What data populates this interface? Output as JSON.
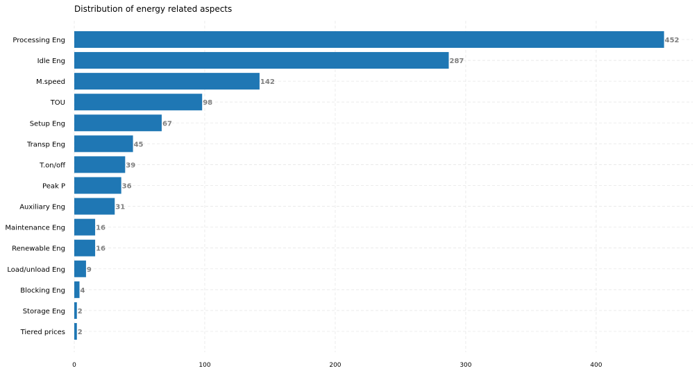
{
  "chart_data": {
    "type": "bar",
    "orientation": "horizontal",
    "title": "Distribution of energy related aspects",
    "xlabel": "",
    "ylabel": "",
    "categories": [
      "Processing Eng",
      "Idle Eng",
      "M.speed",
      "TOU",
      "Setup Eng",
      "Transp Eng",
      "T.on/off",
      "Peak P",
      "Auxiliary Eng",
      "Maintenance Eng",
      "Renewable Eng",
      "Load/unload Eng",
      "Blocking Eng",
      "Storage Eng",
      "Tiered prices"
    ],
    "values": [
      452,
      287,
      142,
      98,
      67,
      45,
      39,
      36,
      31,
      16,
      16,
      9,
      4,
      2,
      2
    ],
    "xlim": [
      0,
      474
    ],
    "xticks": [
      0,
      100,
      200,
      300,
      400
    ],
    "grid": true,
    "data_labels": true,
    "colors": {
      "bar": "#1f77b4",
      "label": "#7f7f7f",
      "grid": "#e6e6e6"
    }
  }
}
